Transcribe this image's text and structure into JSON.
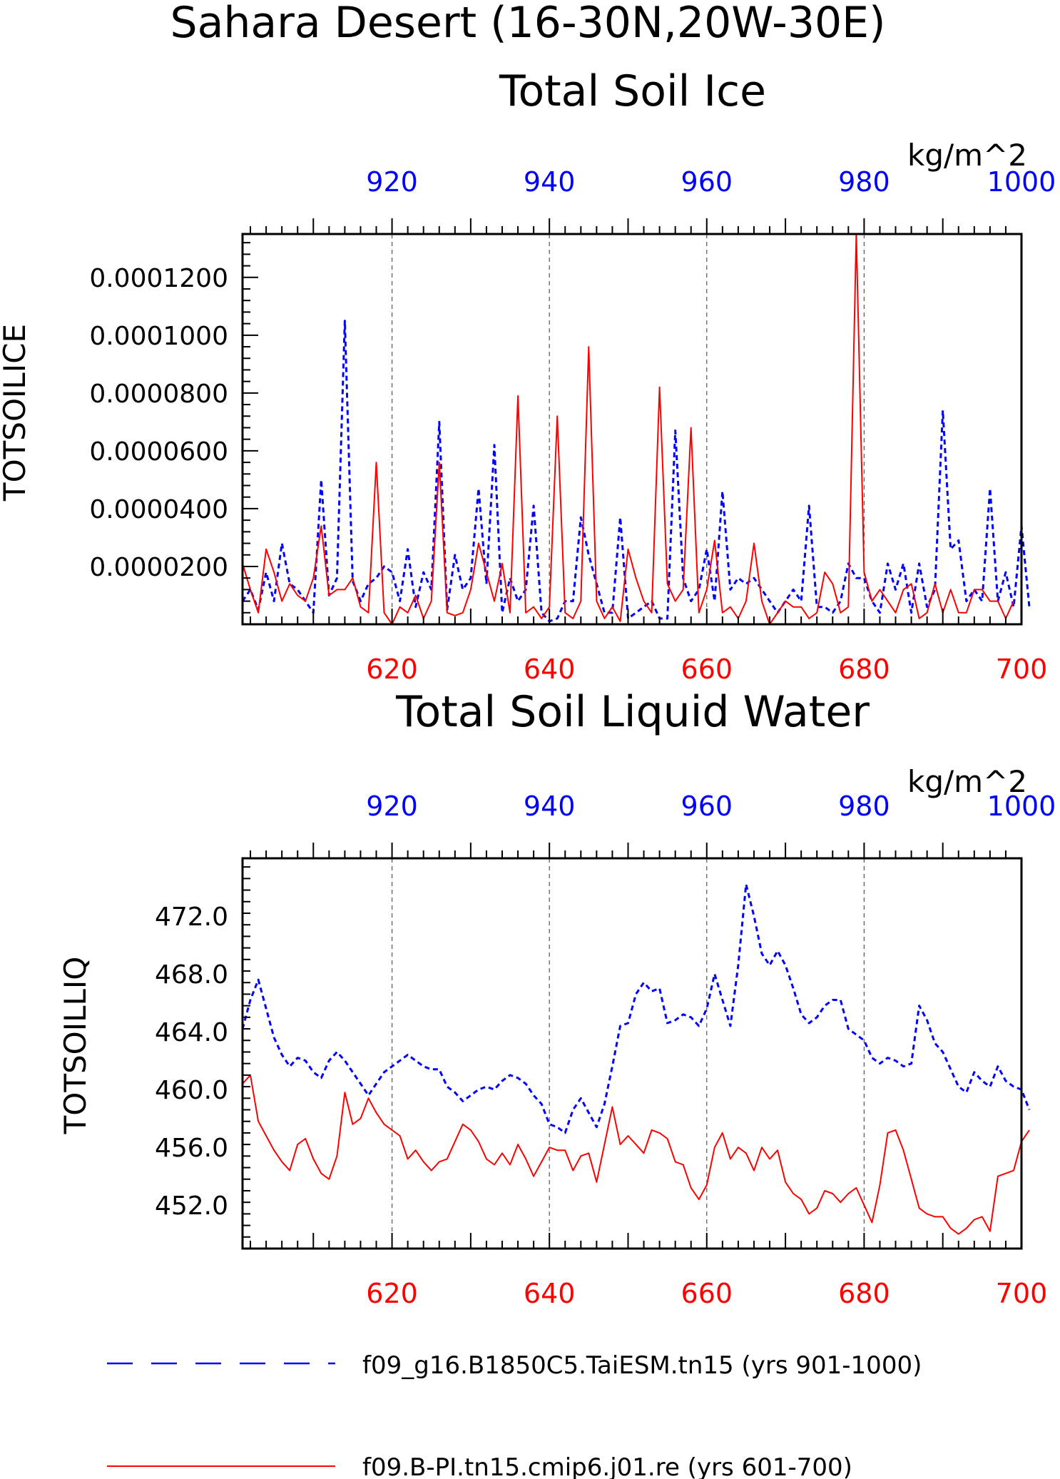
{
  "page": {
    "title_line1": "Sahara Desert (16-30N,20W-30E)"
  },
  "colors": {
    "blue": "#0000ff",
    "red": "#ff0000",
    "axis": "#000000",
    "grid": "#555555"
  },
  "legend": [
    {
      "label": "f09_g16.B1850C5.TaiESM.tn15 (yrs 901-1000)",
      "color": "#0000ff",
      "dash": "dashed"
    },
    {
      "label": "f09.B-PI.tn15.cmip6.j01.re (yrs 601-700)",
      "color": "#ff0000",
      "dash": "solid"
    }
  ],
  "chart_data": [
    {
      "type": "line",
      "title": "Total Soil Ice",
      "ylabel": "TOTSOILICE",
      "units": "kg/m^2",
      "ylim": [
        0,
        0.000135
      ],
      "yticks": [
        2e-05,
        4e-05,
        6e-05,
        8e-05,
        0.0001,
        0.00012
      ],
      "ytick_labels": [
        "0.0000200",
        "0.0000400",
        "0.0000600",
        "0.0000800",
        "0.0001000",
        "0.0001200"
      ],
      "x_bottom": {
        "range": [
          601,
          700
        ],
        "ticks": [
          620,
          640,
          660,
          680,
          700
        ],
        "tick_labels": [
          "620",
          "640",
          "660",
          "680",
          "700"
        ],
        "color": "#ff0000"
      },
      "x_top": {
        "range": [
          901,
          1000
        ],
        "ticks": [
          920,
          940,
          960,
          980,
          1000
        ],
        "tick_labels": [
          "920",
          "940",
          "960",
          "980",
          "1000"
        ],
        "color": "#0000ff"
      },
      "grid_x": [
        620,
        640,
        660,
        680
      ],
      "series": [
        {
          "name": "f09_g16.B1850C5.TaiESM.tn15 (yrs 901-1000)",
          "axis": "top",
          "x_start": 901,
          "color": "#0000ff",
          "style": "dashed",
          "values": [
            8e-06,
            1.2e-05,
            5e-06,
            1.8e-05,
            8e-06,
            2.8e-05,
            1.4e-05,
            1.2e-05,
            8e-06,
            4e-06,
            5e-05,
            1e-05,
            1.6e-05,
            0.000105,
            1.5e-05,
            8e-06,
            1.4e-05,
            1.6e-05,
            2e-05,
            1.8e-05,
            8e-06,
            2.6e-05,
            6e-06,
            1.8e-05,
            1.2e-05,
            7e-05,
            5e-06,
            2.4e-05,
            1.2e-05,
            1.6e-05,
            4.7e-05,
            1.4e-05,
            6.2e-05,
            4e-06,
            1.6e-05,
            8e-06,
            1.2e-05,
            4.1e-05,
            4e-06,
            1e-06,
            2e-06,
            8e-06,
            8e-06,
            3.7e-05,
            2.4e-05,
            1.4e-05,
            4e-06,
            4e-06,
            3.7e-05,
            2e-06,
            4e-06,
            6e-06,
            8e-06,
            2e-06,
            2e-06,
            6.7e-05,
            1.6e-05,
            8e-06,
            1.2e-05,
            2.6e-05,
            8e-06,
            4.6e-05,
            1.2e-05,
            1.6e-05,
            1.4e-05,
            1.6e-05,
            1.2e-05,
            8e-06,
            4e-06,
            8e-06,
            1.2e-05,
            8e-06,
            4.1e-05,
            6e-06,
            6e-06,
            4e-06,
            8e-06,
            2.1e-05,
            1.6e-05,
            1.6e-05,
            8e-06,
            4e-06,
            2.1e-05,
            1.2e-05,
            2.1e-05,
            4e-06,
            2.1e-05,
            6e-06,
            1.2e-05,
            7.4e-05,
            2.6e-05,
            2.9e-05,
            8e-06,
            1.2e-05,
            8e-06,
            4.7e-05,
            8e-06,
            1.8e-05,
            6e-06,
            3.4e-05,
            6e-06
          ]
        },
        {
          "name": "f09.B-PI.tn15.cmip6.j01.re (yrs 601-700)",
          "axis": "bottom",
          "x_start": 601,
          "color": "#ff0000",
          "style": "solid",
          "values": [
            2.1e-05,
            1.2e-05,
            4e-06,
            2.6e-05,
            1.8e-05,
            8e-06,
            1.4e-05,
            1e-05,
            8e-06,
            1.6e-05,
            3.4e-05,
            1e-05,
            1.2e-05,
            1.2e-05,
            1.6e-05,
            6e-06,
            4e-06,
            5.6e-05,
            4e-06,
            0.0,
            6e-06,
            4e-06,
            1e-05,
            2e-06,
            8e-06,
            5.6e-05,
            4e-06,
            3e-06,
            4e-06,
            1.2e-05,
            2.8e-05,
            1.8e-05,
            8e-06,
            2.1e-05,
            4e-06,
            7.9e-05,
            4e-06,
            6e-06,
            2e-06,
            6e-06,
            7.2e-05,
            4e-06,
            2e-06,
            8e-06,
            9.6e-05,
            8e-06,
            2e-06,
            6e-06,
            1e-06,
            2.6e-05,
            1.6e-05,
            8e-06,
            4e-06,
            8.2e-05,
            1.4e-05,
            8e-06,
            1.2e-05,
            6.8e-05,
            4e-06,
            1.2e-05,
            2.9e-05,
            4e-06,
            6e-06,
            2e-06,
            8e-06,
            2.8e-05,
            8e-06,
            0.0,
            4e-06,
            8e-06,
            6e-06,
            6e-06,
            2e-06,
            4e-06,
            1.8e-05,
            1.4e-05,
            4e-06,
            6e-06,
            0.000135,
            1.8e-05,
            8e-06,
            1.2e-05,
            8e-06,
            4e-06,
            1.2e-05,
            1.4e-05,
            2e-06,
            4e-06,
            1.4e-05,
            4e-06,
            1.2e-05,
            4e-06,
            4e-06,
            1.2e-05,
            1.2e-05,
            8e-06,
            8e-06,
            2e-06,
            8e-06
          ]
        }
      ]
    },
    {
      "type": "line",
      "title": "Total Soil Liquid Water",
      "ylabel": "TOTSOILLIQ",
      "units": "kg/m^2",
      "ylim": [
        449,
        476
      ],
      "yticks": [
        452,
        456,
        460,
        464,
        468,
        472
      ],
      "ytick_labels": [
        "452.0",
        "456.0",
        "460.0",
        "464.0",
        "468.0",
        "472.0"
      ],
      "x_bottom": {
        "range": [
          601,
          700
        ],
        "ticks": [
          620,
          640,
          660,
          680,
          700
        ],
        "tick_labels": [
          "620",
          "640",
          "660",
          "680",
          "700"
        ],
        "color": "#ff0000"
      },
      "x_top": {
        "range": [
          901,
          1000
        ],
        "ticks": [
          920,
          940,
          960,
          980,
          1000
        ],
        "tick_labels": [
          "920",
          "940",
          "960",
          "980",
          "1000"
        ],
        "color": "#0000ff"
      },
      "grid_x": [
        620,
        640,
        660,
        680
      ],
      "series": [
        {
          "name": "f09_g16.B1850C5.TaiESM.tn15 (yrs 901-1000)",
          "axis": "top",
          "x_start": 901,
          "color": "#0000ff",
          "style": "dashed",
          "values": [
            464.2,
            466.2,
            467.6,
            465.6,
            463.6,
            462.4,
            461.6,
            462.2,
            462.0,
            461.2,
            460.8,
            462.0,
            462.6,
            462.0,
            461.2,
            460.4,
            459.6,
            460.4,
            461.2,
            461.6,
            462.0,
            462.4,
            462.0,
            461.6,
            461.4,
            461.4,
            460.2,
            459.8,
            459.2,
            459.6,
            460.0,
            460.2,
            460.0,
            460.6,
            461.0,
            460.8,
            460.4,
            459.6,
            459.0,
            457.6,
            457.4,
            457.0,
            458.6,
            459.4,
            458.4,
            457.4,
            459.0,
            461.6,
            464.4,
            464.6,
            466.6,
            467.4,
            466.8,
            467.0,
            464.6,
            464.8,
            465.2,
            465.0,
            464.4,
            465.6,
            468.0,
            466.2,
            464.4,
            468.6,
            474.2,
            472.0,
            469.4,
            468.6,
            469.6,
            468.6,
            467.0,
            465.2,
            464.6,
            465.0,
            465.8,
            466.2,
            466.2,
            464.2,
            463.8,
            463.4,
            462.2,
            461.8,
            462.2,
            462.0,
            461.6,
            461.8,
            465.8,
            464.8,
            463.2,
            462.6,
            461.4,
            460.2,
            459.8,
            461.2,
            460.6,
            460.2,
            461.6,
            460.6,
            460.2,
            460.0,
            458.6
          ]
        },
        {
          "name": "f09.B-PI.tn15.cmip6.j01.re (yrs 601-700)",
          "axis": "bottom",
          "x_start": 601,
          "color": "#ff0000",
          "style": "solid",
          "values": [
            460.4,
            461.0,
            457.8,
            456.8,
            455.8,
            455.0,
            454.4,
            456.2,
            456.6,
            455.2,
            454.2,
            453.8,
            455.4,
            459.8,
            457.6,
            458.0,
            459.4,
            458.4,
            457.6,
            457.2,
            456.8,
            455.2,
            455.8,
            455.0,
            454.4,
            455.0,
            455.2,
            456.4,
            457.6,
            457.2,
            456.4,
            455.2,
            454.8,
            455.6,
            454.8,
            456.2,
            455.2,
            454.0,
            455.0,
            456.0,
            455.8,
            455.8,
            454.4,
            455.4,
            455.6,
            453.6,
            456.2,
            458.8,
            456.2,
            456.8,
            456.2,
            455.6,
            457.2,
            457.0,
            456.6,
            455.0,
            454.8,
            453.2,
            452.4,
            453.4,
            456.0,
            457.0,
            455.2,
            456.0,
            455.6,
            454.4,
            456.0,
            455.2,
            455.8,
            453.6,
            452.8,
            452.4,
            451.4,
            451.8,
            453.0,
            452.8,
            452.2,
            452.8,
            453.2,
            452.0,
            450.8,
            453.4,
            457.0,
            457.2,
            455.8,
            453.8,
            451.8,
            451.4,
            451.2,
            451.2,
            450.4,
            450.0,
            450.4,
            451.0,
            451.2,
            450.2,
            454.0,
            454.2,
            454.4,
            456.4,
            457.2
          ]
        }
      ]
    }
  ]
}
